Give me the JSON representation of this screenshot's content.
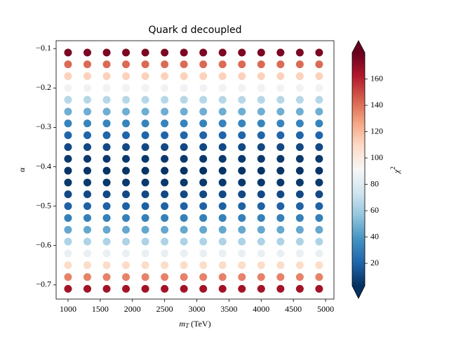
{
  "chart_data": {
    "type": "scatter",
    "title": "Quark d decoupled",
    "xlabel": [
      "m",
      "T",
      " (TeV)"
    ],
    "ylabel": "α",
    "colorbar_label": [
      "χ",
      "2"
    ],
    "colormap": "RdBu_r",
    "x": [
      1000,
      1300,
      1600,
      1900,
      2200,
      2500,
      2800,
      3100,
      3400,
      3700,
      4000,
      4300,
      4600,
      4900
    ],
    "y": [
      -0.11,
      -0.14,
      -0.17,
      -0.2,
      -0.23,
      -0.26,
      -0.29,
      -0.32,
      -0.35,
      -0.38,
      -0.41,
      -0.44,
      -0.47,
      -0.5,
      -0.53,
      -0.56,
      -0.59,
      -0.62,
      -0.65,
      -0.68,
      -0.71
    ],
    "values": [
      [
        175,
        175,
        175,
        175,
        175,
        175,
        175,
        175,
        175,
        175,
        175,
        175,
        175,
        175
      ],
      [
        142,
        142,
        142,
        142,
        142,
        142,
        142,
        142,
        142,
        142,
        142,
        142,
        142,
        142
      ],
      [
        112,
        112,
        112,
        112,
        112,
        112,
        112,
        112,
        112,
        112,
        112,
        112,
        112,
        112
      ],
      [
        88,
        88,
        88,
        88,
        88,
        88,
        88,
        88,
        88,
        88,
        88,
        88,
        88,
        88
      ],
      [
        66,
        66,
        66,
        66,
        66,
        66,
        66,
        66,
        66,
        66,
        66,
        66,
        66,
        66
      ],
      [
        48,
        48,
        48,
        48,
        48,
        48,
        48,
        48,
        48,
        48,
        48,
        48,
        48,
        48
      ],
      [
        32,
        32,
        32,
        32,
        32,
        32,
        32,
        32,
        32,
        32,
        32,
        32,
        32,
        32
      ],
      [
        20,
        20,
        20,
        20,
        20,
        20,
        20,
        20,
        20,
        20,
        20,
        20,
        20,
        20
      ],
      [
        11,
        11,
        11,
        11,
        11,
        11,
        11,
        11,
        11,
        11,
        11,
        11,
        11,
        11
      ],
      [
        6,
        6,
        6,
        6,
        6,
        6,
        6,
        6,
        6,
        6,
        6,
        6,
        6,
        6
      ],
      [
        4,
        4,
        4,
        4,
        4,
        4,
        4,
        4,
        4,
        4,
        4,
        4,
        4,
        4
      ],
      [
        6,
        6,
        6,
        6,
        6,
        6,
        6,
        6,
        6,
        6,
        6,
        6,
        6,
        6
      ],
      [
        11,
        11,
        11,
        11,
        11,
        11,
        11,
        11,
        11,
        11,
        11,
        11,
        11,
        11
      ],
      [
        19,
        19,
        19,
        19,
        19,
        19,
        19,
        19,
        19,
        19,
        19,
        19,
        19,
        19
      ],
      [
        31,
        31,
        31,
        31,
        31,
        31,
        31,
        31,
        31,
        31,
        31,
        31,
        31,
        31
      ],
      [
        46,
        46,
        46,
        46,
        46,
        46,
        46,
        46,
        46,
        46,
        46,
        46,
        46,
        46
      ],
      [
        64,
        64,
        64,
        64,
        64,
        64,
        64,
        64,
        64,
        64,
        64,
        64,
        64,
        64
      ],
      [
        85,
        85,
        85,
        85,
        85,
        85,
        85,
        85,
        85,
        85,
        85,
        85,
        85,
        85
      ],
      [
        108,
        108,
        108,
        108,
        108,
        108,
        108,
        108,
        108,
        108,
        108,
        108,
        108,
        108
      ],
      [
        136,
        136,
        136,
        136,
        136,
        136,
        136,
        136,
        136,
        136,
        136,
        136,
        136,
        136
      ],
      [
        166,
        166,
        166,
        166,
        166,
        166,
        166,
        166,
        166,
        166,
        166,
        166,
        166,
        166
      ]
    ],
    "xlim": [
      815,
      5130
    ],
    "ylim": [
      -0.736,
      -0.08
    ],
    "xticks": [
      1000,
      1500,
      2000,
      2500,
      3000,
      3500,
      4000,
      4500,
      5000
    ],
    "yticks": [
      {
        "value": -0.1,
        "label": "−0.1"
      },
      {
        "value": -0.2,
        "label": "−0.2"
      },
      {
        "value": -0.3,
        "label": "−0.3"
      },
      {
        "value": -0.4,
        "label": "−0.4"
      },
      {
        "value": -0.5,
        "label": "−0.5"
      },
      {
        "value": -0.6,
        "label": "−0.6"
      },
      {
        "value": -0.7,
        "label": "−0.7"
      }
    ],
    "clim": [
      3,
      180
    ],
    "cticks": [
      20,
      40,
      60,
      80,
      100,
      120,
      140,
      160
    ]
  }
}
